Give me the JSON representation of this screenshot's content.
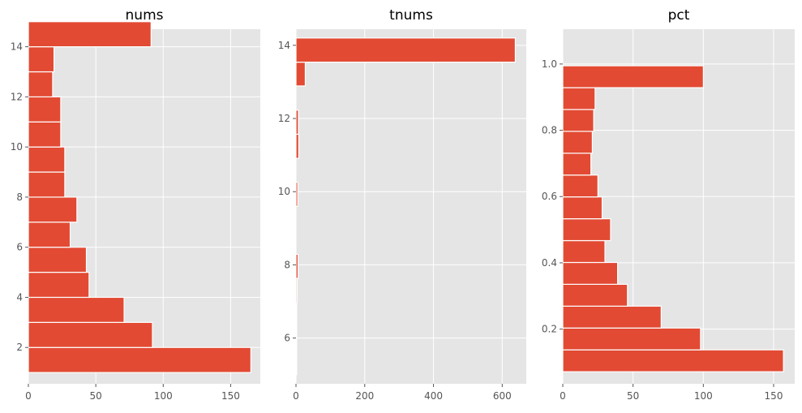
{
  "chart_data": [
    {
      "type": "bar",
      "orientation": "horizontal",
      "title": "nums",
      "grid": true,
      "xlim": [
        0,
        172
      ],
      "ylim": [
        0.55,
        14.7
      ],
      "xticks": [
        0,
        50,
        100,
        150
      ],
      "yticks": [
        2,
        4,
        6,
        8,
        10,
        12,
        14
      ],
      "bins": [
        {
          "lo": 1.0,
          "hi": 2.0,
          "value": 165
        },
        {
          "lo": 2.0,
          "hi": 3.0,
          "value": 92
        },
        {
          "lo": 3.0,
          "hi": 4.0,
          "value": 71
        },
        {
          "lo": 4.0,
          "hi": 5.0,
          "value": 45
        },
        {
          "lo": 5.0,
          "hi": 6.0,
          "value": 43
        },
        {
          "lo": 6.0,
          "hi": 7.0,
          "value": 31
        },
        {
          "lo": 7.0,
          "hi": 8.0,
          "value": 36
        },
        {
          "lo": 8.0,
          "hi": 9.0,
          "value": 27
        },
        {
          "lo": 9.0,
          "hi": 10.0,
          "value": 27
        },
        {
          "lo": 10.0,
          "hi": 11.0,
          "value": 24
        },
        {
          "lo": 11.0,
          "hi": 12.0,
          "value": 24
        },
        {
          "lo": 12.0,
          "hi": 13.0,
          "value": 18
        },
        {
          "lo": 13.0,
          "hi": 14.0,
          "value": 19
        },
        {
          "lo": 14.0,
          "hi": 15.0,
          "value": 91
        }
      ]
    },
    {
      "type": "bar",
      "orientation": "horizontal",
      "title": "tnums",
      "grid": true,
      "xlim": [
        0,
        670
      ],
      "ylim": [
        4.75,
        14.44
      ],
      "xticks": [
        0,
        200,
        400,
        600
      ],
      "yticks": [
        6,
        8,
        10,
        12,
        14
      ],
      "bins": [
        {
          "lo": 5.0,
          "hi": 5.66,
          "value": 1
        },
        {
          "lo": 5.66,
          "hi": 6.31,
          "value": 2
        },
        {
          "lo": 6.31,
          "hi": 6.97,
          "value": 2
        },
        {
          "lo": 6.97,
          "hi": 7.63,
          "value": 3
        },
        {
          "lo": 7.63,
          "hi": 8.29,
          "value": 6
        },
        {
          "lo": 8.29,
          "hi": 8.94,
          "value": 0
        },
        {
          "lo": 8.94,
          "hi": 9.6,
          "value": 0
        },
        {
          "lo": 9.6,
          "hi": 10.26,
          "value": 5
        },
        {
          "lo": 10.26,
          "hi": 10.91,
          "value": 0
        },
        {
          "lo": 10.91,
          "hi": 11.57,
          "value": 8
        },
        {
          "lo": 11.57,
          "hi": 12.23,
          "value": 7
        },
        {
          "lo": 12.23,
          "hi": 12.89,
          "value": 0
        },
        {
          "lo": 12.89,
          "hi": 13.54,
          "value": 27
        },
        {
          "lo": 13.54,
          "hi": 14.2,
          "value": 638
        }
      ]
    },
    {
      "type": "bar",
      "orientation": "horizontal",
      "title": "pct",
      "grid": true,
      "xlim": [
        0,
        165
      ],
      "ylim": [
        0.035,
        1.105
      ],
      "xticks": [
        0,
        50,
        100,
        150
      ],
      "yticks": [
        0.2,
        0.4,
        0.6,
        0.8,
        1.0
      ],
      "bins": [
        {
          "lo": 0.0714,
          "hi": 0.1374,
          "value": 157
        },
        {
          "lo": 0.1374,
          "hi": 0.2033,
          "value": 98
        },
        {
          "lo": 0.2033,
          "hi": 0.2693,
          "value": 70
        },
        {
          "lo": 0.2693,
          "hi": 0.3352,
          "value": 46
        },
        {
          "lo": 0.3352,
          "hi": 0.4011,
          "value": 39
        },
        {
          "lo": 0.4011,
          "hi": 0.4671,
          "value": 30
        },
        {
          "lo": 0.4671,
          "hi": 0.533,
          "value": 34
        },
        {
          "lo": 0.533,
          "hi": 0.599,
          "value": 28
        },
        {
          "lo": 0.599,
          "hi": 0.6649,
          "value": 25
        },
        {
          "lo": 0.6649,
          "hi": 0.7308,
          "value": 20
        },
        {
          "lo": 0.7308,
          "hi": 0.7968,
          "value": 21
        },
        {
          "lo": 0.7968,
          "hi": 0.8627,
          "value": 22
        },
        {
          "lo": 0.8627,
          "hi": 0.9286,
          "value": 23
        },
        {
          "lo": 0.9286,
          "hi": 0.9946,
          "value": 100
        }
      ]
    }
  ],
  "colors": {
    "bar": "#E24A33",
    "bar_edge": "#ffffff",
    "panel_bg": "#E5E5E5",
    "grid": "#ffffff",
    "tick_text": "#555555",
    "title_text": "#000000"
  }
}
